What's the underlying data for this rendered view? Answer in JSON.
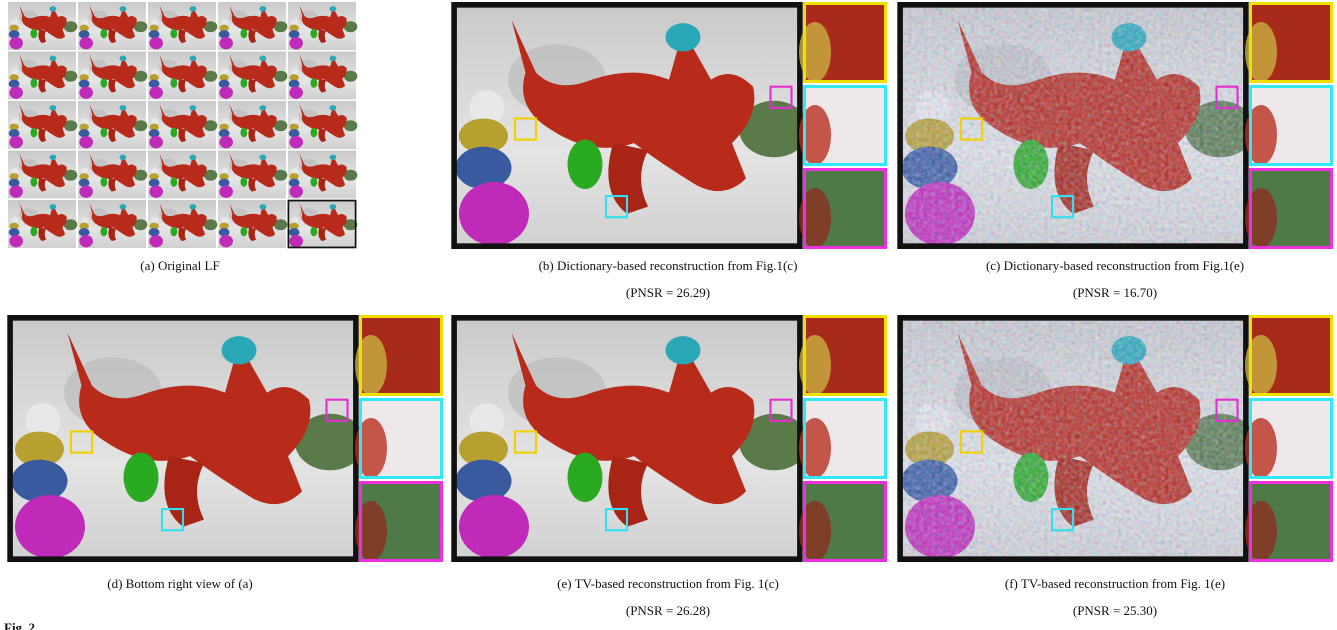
{
  "panels": [
    {
      "caption": "(a) Original LF"
    },
    {
      "caption": "(b) Dictionary-based reconstruction from Fig.1(c)",
      "psnr": "(PNSR = 26.29)"
    },
    {
      "caption": "(c) Dictionary-based reconstruction from Fig.1(e)",
      "psnr": "(PNSR = 16.70)"
    },
    {
      "caption": "(d) Bottom right view of (a)"
    },
    {
      "caption": "(e) TV-based reconstruction from Fig. 1(c)",
      "psnr": "(PNSR = 26.28)"
    },
    {
      "caption": "(f) TV-based reconstruction from Fig. 1(e)",
      "psnr": "(PNSR = 25.30)"
    }
  ],
  "figure_label": "Fig. 2"
}
